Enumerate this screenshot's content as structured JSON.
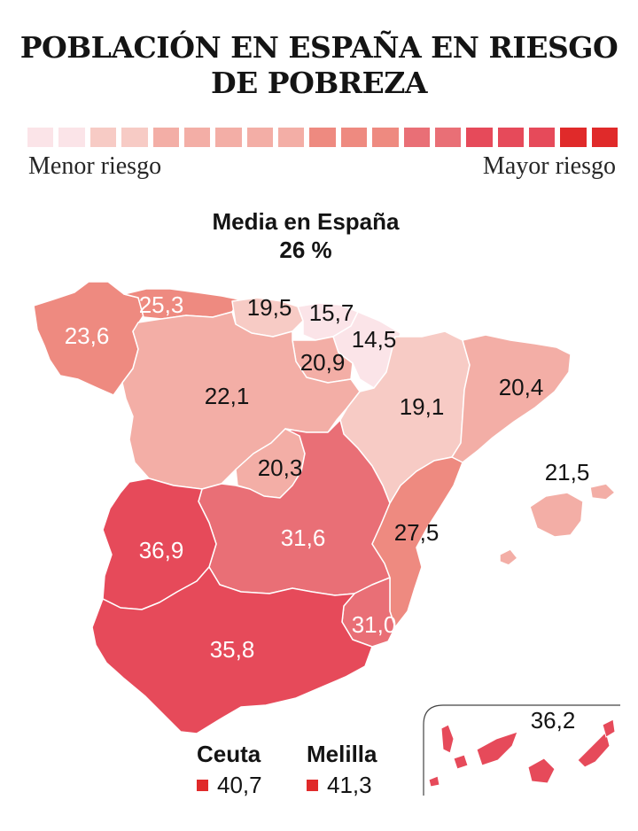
{
  "title": {
    "line1": "POBLACIÓN EN ESPAÑA EN RIESGO",
    "line2": "DE POBREZA"
  },
  "legend": {
    "low_label": "Menor riesgo",
    "high_label": "Mayor riesgo",
    "colors": [
      "#fbe4e8",
      "#fbe4e8",
      "#f7cbc5",
      "#f7cbc5",
      "#f3aea6",
      "#f3aea6",
      "#f3aea6",
      "#f3aea6",
      "#f3aea6",
      "#ee8a80",
      "#ee8a80",
      "#ee8a80",
      "#e96f76",
      "#e96f76",
      "#e64a5a",
      "#e64a5a",
      "#e64a5a",
      "#e02a2a",
      "#e02a2a"
    ]
  },
  "average": {
    "label": "Media en España",
    "value": "26 %"
  },
  "regions": [
    {
      "name": "Galicia",
      "value": "23,6",
      "color": "#ee8a80"
    },
    {
      "name": "Asturias",
      "value": "25,3",
      "color": "#ee8a80"
    },
    {
      "name": "Cantabria",
      "value": "19,5",
      "color": "#f7cbc5"
    },
    {
      "name": "País Vasco",
      "value": "15,7",
      "color": "#fbe4e8"
    },
    {
      "name": "Navarra",
      "value": "14,5",
      "color": "#fbe4e8"
    },
    {
      "name": "La Rioja",
      "value": "20,9",
      "color": "#f3aea6"
    },
    {
      "name": "Castilla y León",
      "value": "22,1",
      "color": "#f3aea6"
    },
    {
      "name": "Aragón",
      "value": "19,1",
      "color": "#f7cbc5"
    },
    {
      "name": "Cataluña",
      "value": "20,4",
      "color": "#f3aea6"
    },
    {
      "name": "Madrid",
      "value": "20,3",
      "color": "#f3aea6"
    },
    {
      "name": "Baleares",
      "value": "21,5",
      "color": "#f3aea6"
    },
    {
      "name": "Comunidad Valenciana",
      "value": "27,5",
      "color": "#ee8a80"
    },
    {
      "name": "Extremadura",
      "value": "36,9",
      "color": "#e64a5a"
    },
    {
      "name": "Castilla-La Mancha",
      "value": "31,6",
      "color": "#e96f76"
    },
    {
      "name": "Murcia",
      "value": "31,0",
      "color": "#e96f76"
    },
    {
      "name": "Andalucía",
      "value": "35,8",
      "color": "#e64a5a"
    },
    {
      "name": "Canarias",
      "value": "36,2",
      "color": "#e64a5a"
    }
  ],
  "cities": {
    "ceuta": {
      "name": "Ceuta",
      "value": "40,7",
      "color": "#e02a2a"
    },
    "melilla": {
      "name": "Melilla",
      "value": "41,3",
      "color": "#e02a2a"
    }
  }
}
